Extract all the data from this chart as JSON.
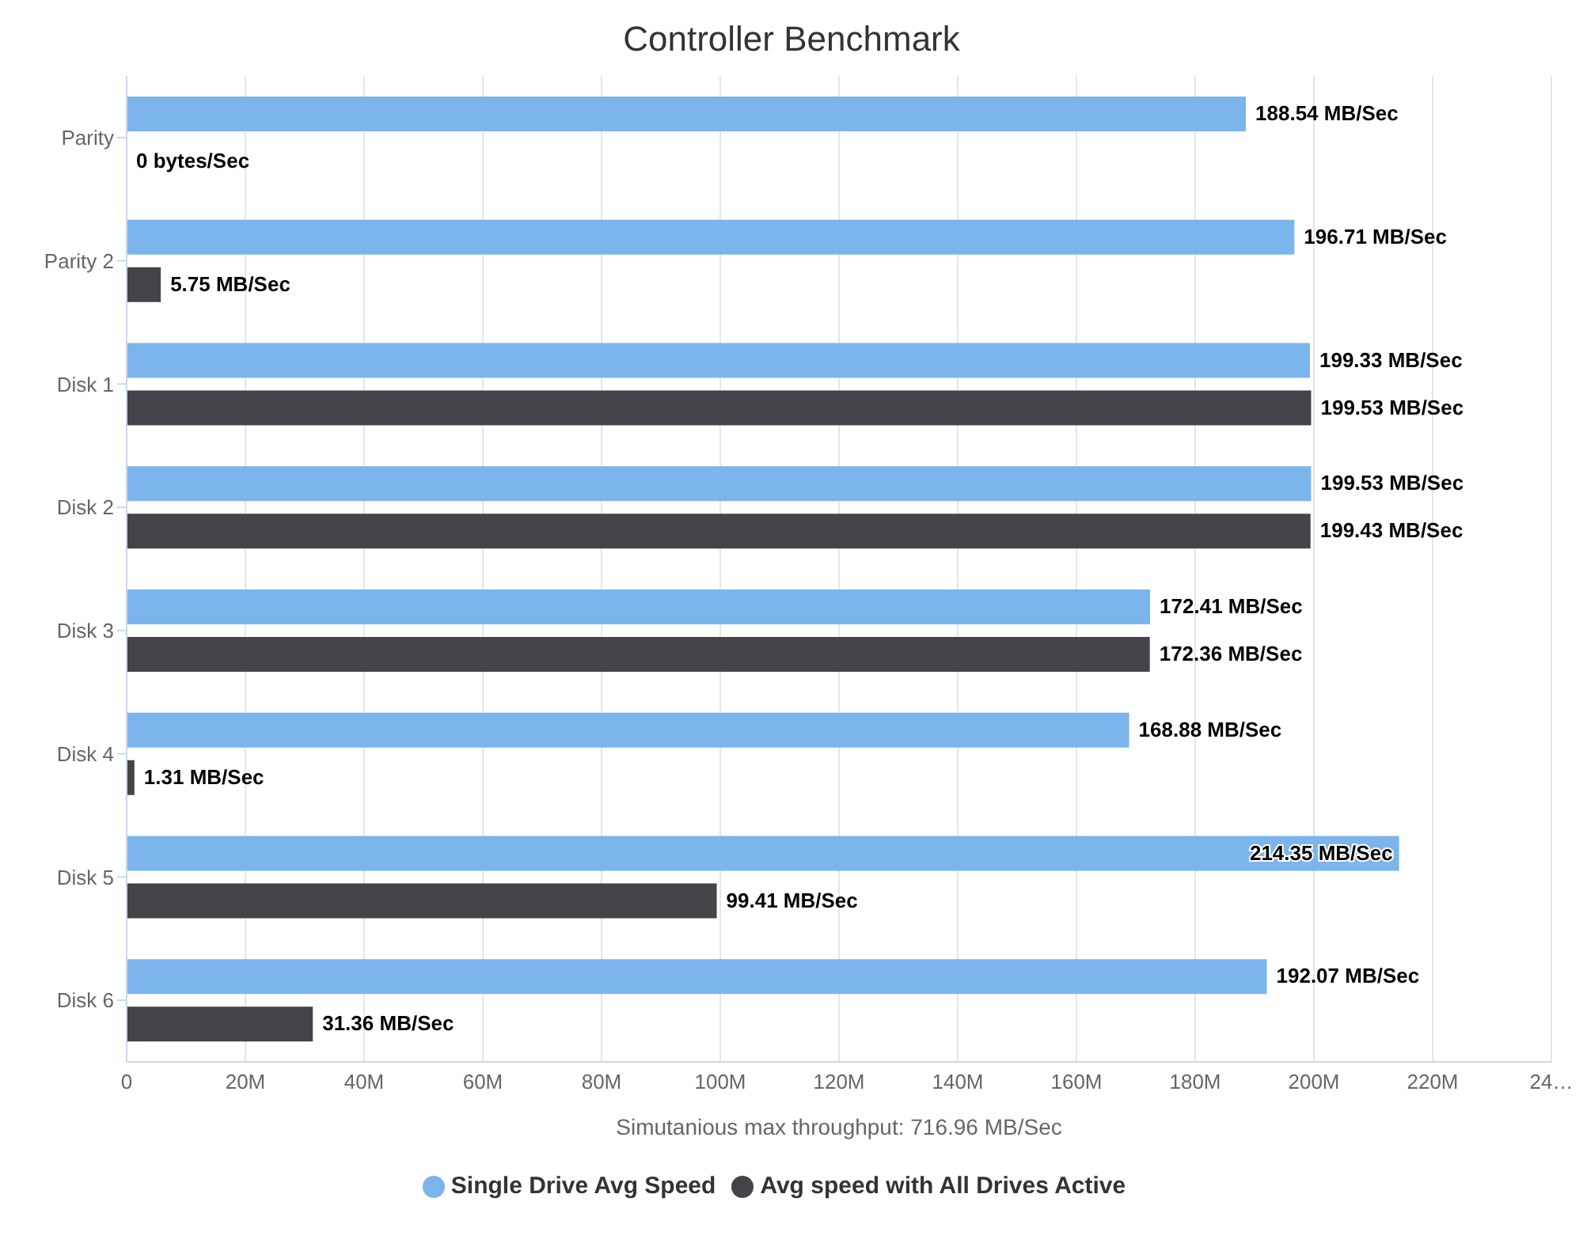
{
  "chart_data": {
    "type": "bar",
    "orientation": "horizontal",
    "title": "Controller Benchmark",
    "xlabel": "Simutanious max throughput: 716.96 MB/Sec",
    "categories": [
      "Parity",
      "Parity 2",
      "Disk 1",
      "Disk 2",
      "Disk 3",
      "Disk 4",
      "Disk 5",
      "Disk 6"
    ],
    "series": [
      {
        "name": "Single Drive Avg Speed",
        "color": "#7cb5ec",
        "values": [
          188.54,
          196.71,
          199.33,
          199.53,
          172.41,
          168.88,
          214.35,
          192.07
        ],
        "value_labels": [
          "188.54 MB/Sec",
          "196.71 MB/Sec",
          "199.33 MB/Sec",
          "199.53 MB/Sec",
          "172.41 MB/Sec",
          "168.88 MB/Sec",
          "214.35 MB/Sec",
          "192.07 MB/Sec"
        ]
      },
      {
        "name": "Avg speed with All Drives Active",
        "color": "#434348",
        "values": [
          0,
          5.75,
          199.53,
          199.43,
          172.36,
          1.31,
          99.41,
          31.36
        ],
        "value_labels": [
          "0 bytes/Sec",
          "5.75 MB/Sec",
          "199.53 MB/Sec",
          "199.43 MB/Sec",
          "172.36 MB/Sec",
          "1.31 MB/Sec",
          "99.41 MB/Sec",
          "31.36 MB/Sec"
        ]
      }
    ],
    "xlim": [
      0,
      240
    ],
    "xticks": [
      0,
      {
        "value": 20,
        "label": "20M"
      },
      {
        "value": 40,
        "label": "40M"
      },
      {
        "value": 60,
        "label": "60M"
      },
      {
        "value": 80,
        "label": "80M"
      },
      {
        "value": 100,
        "label": "100M"
      },
      {
        "value": 120,
        "label": "120M"
      },
      {
        "value": 140,
        "label": "140M"
      },
      {
        "value": 160,
        "label": "160M"
      },
      {
        "value": 180,
        "label": "180M"
      },
      {
        "value": 200,
        "label": "200M"
      },
      {
        "value": 220,
        "label": "220M"
      },
      {
        "value": 240,
        "label": "24…"
      }
    ],
    "grid": "x",
    "legend": "bottom"
  }
}
